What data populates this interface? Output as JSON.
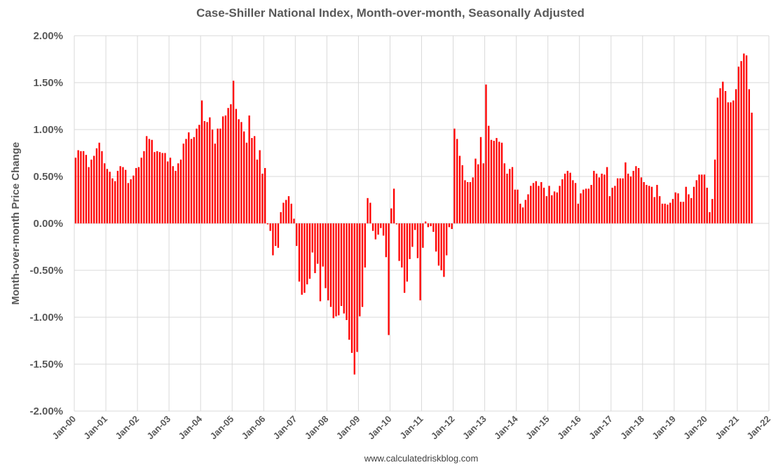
{
  "chart_data": {
    "type": "bar",
    "title": "Case-Shiller National Index, Month-over-month, Seasonally Adjusted",
    "ylabel": "Month-over-month Price Change",
    "xlabel": "",
    "source_note": "www.calculatedriskblog.com",
    "ylim": [
      -2.0,
      2.0
    ],
    "y_ticks": [
      "2.00%",
      "1.50%",
      "1.00%",
      "0.50%",
      "0.00%",
      "-0.50%",
      "-1.00%",
      "-1.50%",
      "-2.00%"
    ],
    "x_ticks": [
      "Jan-00",
      "Jan-01",
      "Jan-02",
      "Jan-03",
      "Jan-04",
      "Jan-05",
      "Jan-06",
      "Jan-07",
      "Jan-08",
      "Jan-09",
      "Jan-10",
      "Jan-11",
      "Jan-12",
      "Jan-13",
      "Jan-14",
      "Jan-15",
      "Jan-16",
      "Jan-17",
      "Jan-18",
      "Jan-19",
      "Jan-20",
      "Jan-21",
      "Jan-22"
    ],
    "first_month": "Jan-00",
    "grid": true,
    "legend": "none",
    "bar_color": "#ff0000",
    "series": [
      {
        "values": [
          0.7,
          0.78,
          0.77,
          0.77,
          0.73,
          0.6,
          0.68,
          0.72,
          0.8,
          0.86,
          0.77,
          0.64,
          0.58,
          0.55,
          0.48,
          0.45,
          0.56,
          0.61,
          0.6,
          0.57,
          0.43,
          0.47,
          0.51,
          0.59,
          0.6,
          0.7,
          0.77,
          0.93,
          0.9,
          0.89,
          0.76,
          0.77,
          0.76,
          0.75,
          0.75,
          0.66,
          0.7,
          0.61,
          0.56,
          0.64,
          0.68,
          0.85,
          0.9,
          0.97,
          0.9,
          0.92,
          1.01,
          1.05,
          1.31,
          1.09,
          1.08,
          1.13,
          1.0,
          0.85,
          1.01,
          1.01,
          1.14,
          1.15,
          1.23,
          1.27,
          1.52,
          1.22,
          1.11,
          1.08,
          0.98,
          0.86,
          1.15,
          0.91,
          0.93,
          0.68,
          0.78,
          0.53,
          0.59,
          -0.01,
          -0.08,
          -0.34,
          -0.24,
          -0.26,
          0.12,
          0.22,
          0.25,
          0.29,
          0.21,
          0.05,
          -0.24,
          -0.62,
          -0.76,
          -0.74,
          -0.65,
          -0.59,
          -0.31,
          -0.53,
          -0.43,
          -0.83,
          -0.46,
          -0.69,
          -0.82,
          -0.89,
          -1.01,
          -0.99,
          -0.98,
          -0.88,
          -0.96,
          -1.03,
          -1.24,
          -1.38,
          -1.61,
          -1.37,
          -0.99,
          -0.89,
          -0.47,
          0.27,
          0.22,
          -0.08,
          -0.17,
          -0.12,
          -0.05,
          -0.13,
          -0.36,
          -1.19,
          0.16,
          0.37,
          -0.01,
          -0.4,
          -0.47,
          -0.74,
          -0.62,
          -0.38,
          -0.25,
          -0.07,
          -0.37,
          -0.82,
          -0.26,
          0.02,
          -0.04,
          -0.03,
          -0.09,
          -0.3,
          -0.45,
          -0.5,
          -0.57,
          -0.34,
          -0.04,
          -0.06,
          1.01,
          0.9,
          0.72,
          0.62,
          0.46,
          0.44,
          0.44,
          0.49,
          0.69,
          0.63,
          0.92,
          0.64,
          1.48,
          1.04,
          0.89,
          0.88,
          0.91,
          0.87,
          0.86,
          0.64,
          0.53,
          0.58,
          0.6,
          0.36,
          0.36,
          0.21,
          0.17,
          0.25,
          0.31,
          0.4,
          0.43,
          0.45,
          0.4,
          0.44,
          0.38,
          0.29,
          0.4,
          0.3,
          0.34,
          0.33,
          0.4,
          0.47,
          0.53,
          0.56,
          0.54,
          0.46,
          0.43,
          0.21,
          0.32,
          0.36,
          0.37,
          0.37,
          0.41,
          0.56,
          0.53,
          0.49,
          0.53,
          0.52,
          0.6,
          0.29,
          0.38,
          0.4,
          0.48,
          0.48,
          0.48,
          0.65,
          0.53,
          0.5,
          0.56,
          0.61,
          0.59,
          0.49,
          0.44,
          0.41,
          0.4,
          0.39,
          0.28,
          0.41,
          0.29,
          0.21,
          0.21,
          0.2,
          0.22,
          0.26,
          0.33,
          0.32,
          0.23,
          0.23,
          0.39,
          0.31,
          0.27,
          0.39,
          0.46,
          0.52,
          0.52,
          0.52,
          0.38,
          0.12,
          0.26,
          0.68,
          1.34,
          1.44,
          1.51,
          1.41,
          1.29,
          1.29,
          1.31,
          1.43,
          1.67,
          1.73,
          1.81,
          1.79,
          1.43,
          1.18
        ]
      }
    ]
  }
}
